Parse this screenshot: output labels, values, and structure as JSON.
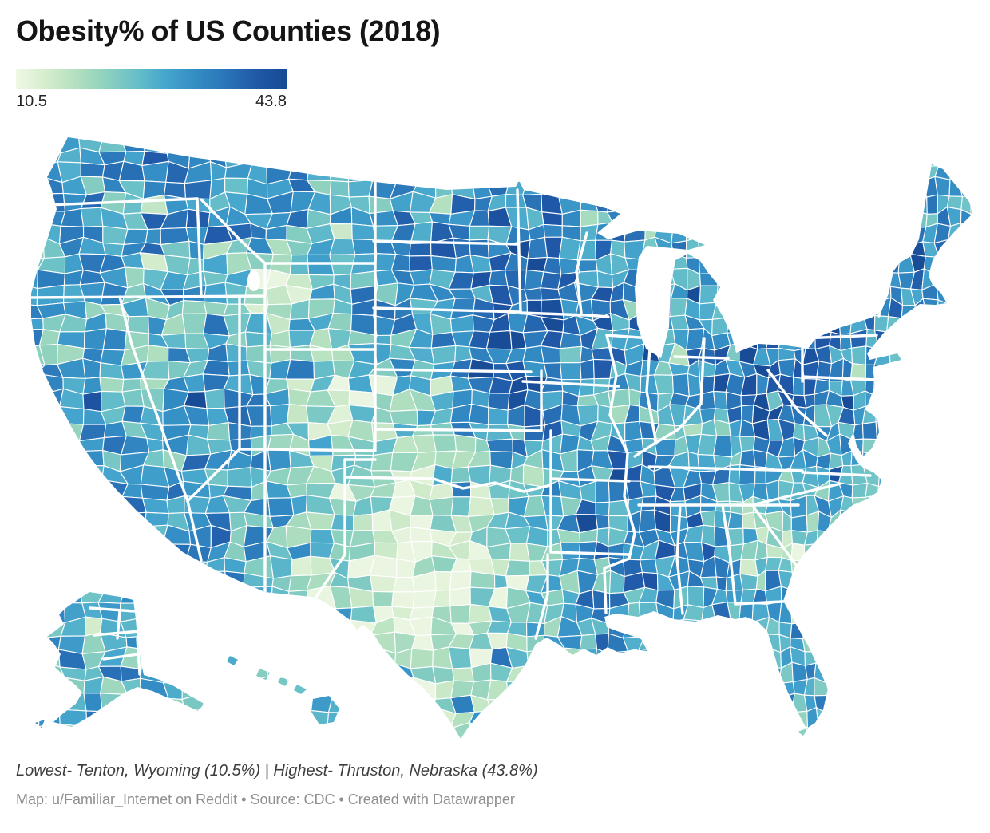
{
  "header": {
    "title": "Obesity% of US Counties (2018)"
  },
  "legend": {
    "min_label": "10.5",
    "max_label": "43.8",
    "gradient_stops": [
      "#f0f8e6",
      "#d5edcd",
      "#b3e0bf",
      "#8ed1bf",
      "#67bfc9",
      "#45a5cd",
      "#338cc4",
      "#2a74b8",
      "#2058a8",
      "#174a94"
    ]
  },
  "map": {
    "type": "choropleth",
    "region": "United States counties (incl. Alaska and Hawaii)",
    "metric": "Obesity %",
    "year": "2018",
    "value_min": 10.5,
    "value_max": 43.8,
    "lowest": {
      "county": "Tenton",
      "state": "Wyoming",
      "value": "10.5%"
    },
    "highest": {
      "county": "Thruston",
      "state": "Nebraska",
      "value": "43.8%"
    },
    "border_color": "#ffffff",
    "background_color": "#ffffff"
  },
  "footer": {
    "note": "Lowest- Tenton, Wyoming (10.5%) | Highest- Thruston, Nebraska (43.8%)",
    "attribution": "Map: u/Familiar_Internet on Reddit • Source: CDC • Created with Datawrapper"
  }
}
